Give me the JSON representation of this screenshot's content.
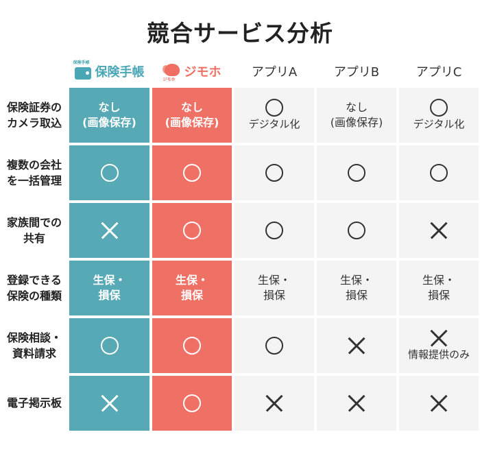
{
  "title": "競合サービス分析",
  "header": {
    "col1": {
      "label": "保険手帳",
      "logo_text": "保険手帳",
      "icon": "wallet-icon",
      "color": "#4aa7b5"
    },
    "col2": {
      "label": "ジモホ",
      "logo_text": "ジモホ",
      "icon": "elephant-icon",
      "color": "#ef6f62"
    },
    "col3": {
      "label": "アプリA"
    },
    "col4": {
      "label": "アプリB"
    },
    "col5": {
      "label": "アプリC"
    }
  },
  "rows": [
    {
      "label": "保険証券の\nカメラ取込",
      "cells": [
        {
          "type": "text",
          "text": "なし\n(画像保存)"
        },
        {
          "type": "text",
          "text": "なし\n(画像保存)"
        },
        {
          "type": "circle",
          "sub": "デジタル化"
        },
        {
          "type": "text",
          "text": "なし\n(画像保存)"
        },
        {
          "type": "circle",
          "sub": "デジタル化"
        }
      ]
    },
    {
      "label": "複数の会社\nを一括管理",
      "cells": [
        {
          "type": "circle"
        },
        {
          "type": "circle"
        },
        {
          "type": "circle"
        },
        {
          "type": "circle"
        },
        {
          "type": "circle"
        }
      ]
    },
    {
      "label": "家族間での\n共有",
      "cells": [
        {
          "type": "cross"
        },
        {
          "type": "circle"
        },
        {
          "type": "circle"
        },
        {
          "type": "circle"
        },
        {
          "type": "cross"
        }
      ]
    },
    {
      "label": "登録できる\n保険の種類",
      "cells": [
        {
          "type": "text",
          "text": "生保・\n損保"
        },
        {
          "type": "text",
          "text": "生保・\n損保"
        },
        {
          "type": "text",
          "text": "生保・\n損保"
        },
        {
          "type": "text",
          "text": "生保・\n損保"
        },
        {
          "type": "text",
          "text": "生保・\n損保"
        }
      ]
    },
    {
      "label": "保険相談・\n資料請求",
      "cells": [
        {
          "type": "circle"
        },
        {
          "type": "circle"
        },
        {
          "type": "circle"
        },
        {
          "type": "cross"
        },
        {
          "type": "cross",
          "sub": "情報提供のみ"
        }
      ]
    },
    {
      "label": "電子掲示板",
      "cells": [
        {
          "type": "cross"
        },
        {
          "type": "circle"
        },
        {
          "type": "cross"
        },
        {
          "type": "cross"
        },
        {
          "type": "cross"
        }
      ]
    }
  ]
}
